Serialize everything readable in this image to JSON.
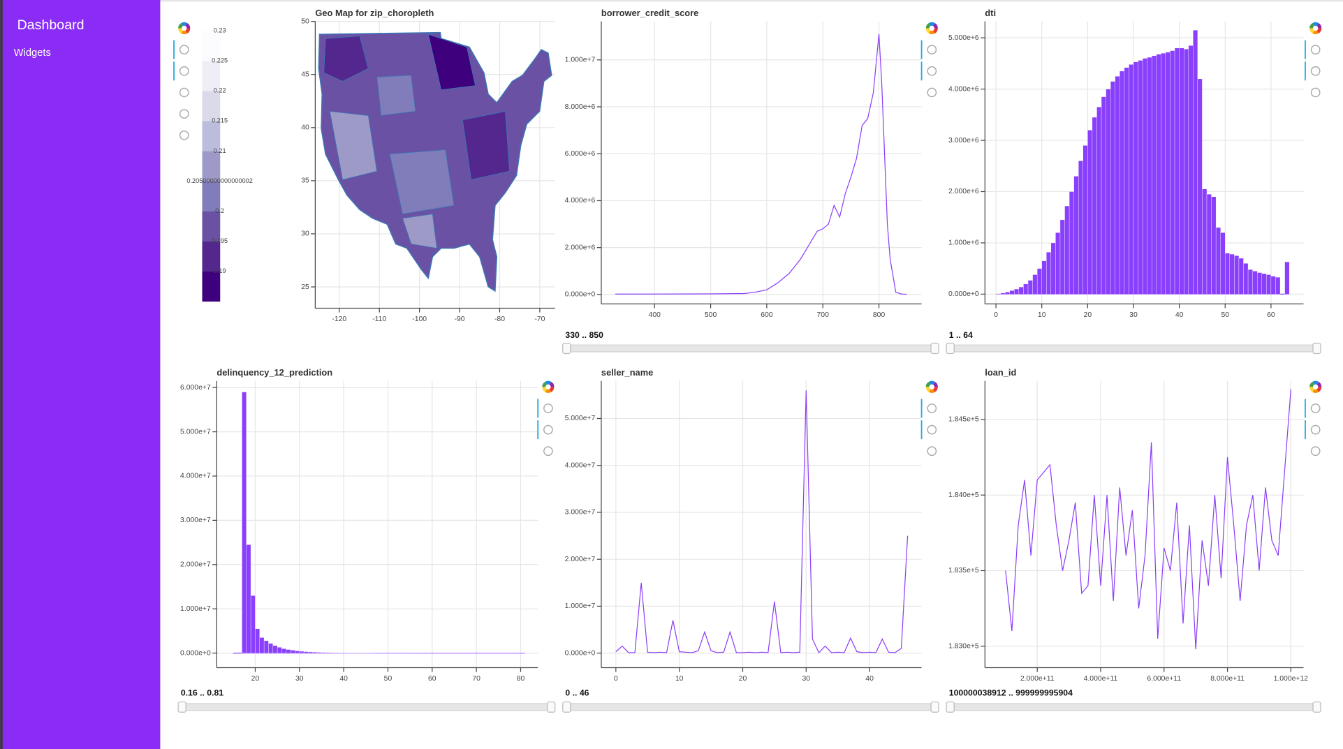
{
  "sidebar": {
    "title": "Dashboard",
    "items": [
      "Widgets"
    ]
  },
  "chart_data": [
    {
      "type": "geo_map",
      "title": "Geo Map for zip_choropleth",
      "xlim": [
        -126,
        -66.2
      ],
      "xticks": [
        -120,
        -110,
        -100,
        -90,
        -80,
        -70
      ],
      "ylim": [
        23,
        50
      ],
      "yticks": [
        25,
        30,
        35,
        40,
        45,
        50
      ],
      "grid": true,
      "colorbar": {
        "lim": [
          0.185,
          0.23
        ],
        "palette": [
          "#3f007d",
          "#54278f",
          "#6a51a3",
          "#807dba",
          "#9e9ac8",
          "#bcbddc",
          "#dadaeb",
          "#efedf5",
          "#fcfbfd"
        ],
        "ticks": [
          0.23,
          0.225,
          0.22,
          0.215,
          0.21,
          {
            "value": 0.205,
            "label": "0.20500000000000002"
          },
          0.2,
          0.195,
          0.19
        ]
      }
    },
    {
      "type": "line",
      "title": "borrower_credit_score",
      "color": "#8c3ff7",
      "range_label": "330 .. 850",
      "x": [
        330,
        400,
        500,
        560,
        580,
        600,
        620,
        640,
        660,
        670,
        680,
        690,
        700,
        710,
        720,
        730,
        740,
        750,
        760,
        770,
        780,
        790,
        800,
        805,
        810,
        815,
        820,
        830,
        840,
        850
      ],
      "values": [
        20000,
        20000,
        25000,
        40000,
        100000,
        200000,
        500000,
        900000,
        1500000,
        1900000,
        2300000,
        2700000,
        2800000,
        3000000,
        3800000,
        3300000,
        4300000,
        5000000,
        5800000,
        7200000,
        7500000,
        8600000,
        11100000,
        9000000,
        6000000,
        3000000,
        1500000,
        100000,
        20000,
        10000
      ],
      "xlim": [
        305,
        876
      ],
      "xticks": [
        400,
        500,
        600,
        700,
        800
      ],
      "ylim": [
        -400000,
        11640000
      ],
      "yticks": [
        {
          "value": 0,
          "label": "0.000e+0"
        },
        {
          "value": 2000000,
          "label": "2.000e+6"
        },
        {
          "value": 4000000,
          "label": "4.000e+6"
        },
        {
          "value": 6000000,
          "label": "6.000e+6"
        },
        {
          "value": 8000000,
          "label": "8.000e+6"
        },
        {
          "value": 10000000,
          "label": "1.000e+7"
        }
      ],
      "grid": true
    },
    {
      "type": "histogram",
      "title": "dti",
      "color": "#8a3ffc",
      "range_label": "1 .. 64",
      "bins": [
        0,
        1,
        2,
        3,
        4,
        5,
        6,
        7,
        8,
        9,
        10,
        11,
        12,
        13,
        14,
        15,
        16,
        17,
        18,
        19,
        20,
        21,
        22,
        23,
        24,
        25,
        26,
        27,
        28,
        29,
        30,
        31,
        32,
        33,
        34,
        35,
        36,
        37,
        38,
        39,
        40,
        41,
        42,
        43,
        44,
        45,
        46,
        47,
        48,
        49,
        50,
        51,
        52,
        53,
        54,
        55,
        56,
        57,
        58,
        59,
        60,
        61,
        62,
        63,
        64
      ],
      "values": [
        10000,
        20000,
        40000,
        70000,
        100000,
        140000,
        200000,
        270000,
        380000,
        500000,
        650000,
        820000,
        1000000,
        1200000,
        1450000,
        1720000,
        2000000,
        2300000,
        2600000,
        2900000,
        3200000,
        3450000,
        3650000,
        3850000,
        4000000,
        4150000,
        4250000,
        4350000,
        4420000,
        4480000,
        4530000,
        4560000,
        4600000,
        4620000,
        4650000,
        4680000,
        4700000,
        4720000,
        4750000,
        4800000,
        4800000,
        4780000,
        4850000,
        5150000,
        4200000,
        2050000,
        1950000,
        1900000,
        1300000,
        1200000,
        800000,
        780000,
        750000,
        700000,
        600000,
        480000,
        450000,
        420000,
        400000,
        380000,
        350000,
        330000,
        0,
        630000
      ],
      "xlim": [
        -2.4,
        67.1
      ],
      "xticks": [
        0,
        10,
        20,
        30,
        40,
        50,
        60
      ],
      "ylim": [
        -190000,
        5320000
      ],
      "yticks": [
        {
          "value": 0,
          "label": "0.000e+0"
        },
        {
          "value": 1000000,
          "label": "1.000e+6"
        },
        {
          "value": 2000000,
          "label": "2.000e+6"
        },
        {
          "value": 3000000,
          "label": "3.000e+6"
        },
        {
          "value": 4000000,
          "label": "4.000e+6"
        },
        {
          "value": 5000000,
          "label": "5.000e+6"
        }
      ],
      "grid": true
    },
    {
      "type": "histogram",
      "title": "delinquency_12_prediction",
      "color": "#8a3ffc",
      "range_label": "0.16 .. 0.81",
      "bins": [
        15,
        16,
        17,
        18,
        19,
        20,
        21,
        22,
        23,
        24,
        25,
        26,
        27,
        28,
        29,
        30,
        31,
        32,
        33,
        34,
        35,
        36,
        37,
        38,
        39,
        40,
        41,
        42,
        43,
        44,
        45,
        46,
        47,
        48,
        49,
        50,
        51,
        52,
        53,
        54,
        55,
        56,
        57,
        58,
        59,
        60,
        61,
        62,
        63,
        64,
        65,
        66,
        67,
        68,
        69,
        70,
        71,
        72,
        73,
        74,
        75,
        76,
        77,
        78,
        79,
        80,
        81
      ],
      "values": [
        0,
        0,
        59000000,
        24500000,
        13000000,
        5500000,
        3500000,
        2800000,
        2200000,
        1700000,
        1300000,
        1000000,
        800000,
        650000,
        500000,
        400000,
        320000,
        260000,
        210000,
        170000,
        140000,
        110000,
        95000,
        85000,
        75000,
        68000,
        60000,
        55000,
        50000,
        46000,
        42000,
        38000,
        35000,
        32000,
        30000,
        28000,
        26000,
        24000,
        22000,
        21000,
        20000,
        19000,
        18000,
        17000,
        16000,
        15000,
        14000,
        13500,
        13000,
        12500,
        12000,
        11500,
        11000,
        10500,
        10000,
        9500,
        9000,
        8500,
        8000,
        7500,
        7000,
        6500,
        6000,
        5500,
        5000,
        4500
      ],
      "xlim": [
        11.3,
        83.9
      ],
      "xticks": [
        20,
        30,
        40,
        50,
        60,
        70,
        80
      ],
      "ylim": [
        -3300000,
        61500000
      ],
      "yticks": [
        {
          "value": 0,
          "label": "0.000e+0"
        },
        {
          "value": 10000000,
          "label": "1.000e+7"
        },
        {
          "value": 20000000,
          "label": "2.000e+7"
        },
        {
          "value": 30000000,
          "label": "3.000e+7"
        },
        {
          "value": 40000000,
          "label": "4.000e+7"
        },
        {
          "value": 50000000,
          "label": "5.000e+7"
        },
        {
          "value": 60000000,
          "label": "6.000e+7"
        }
      ],
      "grid": true
    },
    {
      "type": "line",
      "title": "seller_name",
      "color": "#8c3ff7",
      "range_label": "0 .. 46",
      "x": [
        0,
        1,
        2,
        3,
        4,
        5,
        6,
        7,
        8,
        9,
        10,
        11,
        12,
        13,
        14,
        15,
        16,
        17,
        18,
        19,
        20,
        21,
        22,
        23,
        24,
        25,
        26,
        27,
        28,
        29,
        30,
        31,
        32,
        33,
        34,
        35,
        36,
        37,
        38,
        39,
        40,
        41,
        42,
        43,
        44,
        45,
        46
      ],
      "values": [
        300000,
        1500000,
        100000,
        100000,
        15000000,
        200000,
        100000,
        200000,
        100000,
        7000000,
        300000,
        200000,
        100000,
        500000,
        4500000,
        500000,
        100000,
        200000,
        4500000,
        100000,
        100000,
        200000,
        100000,
        200000,
        100000,
        11000000,
        100000,
        200000,
        100000,
        200000,
        56000000,
        3000000,
        100000,
        1500000,
        100000,
        200000,
        100000,
        3200000,
        300000,
        100000,
        200000,
        100000,
        3000000,
        200000,
        100000,
        1000000,
        25000000
      ],
      "xlim": [
        -2.3,
        48.2
      ],
      "xticks": [
        0,
        10,
        20,
        30,
        40
      ],
      "ylim": [
        -3100000,
        58000000
      ],
      "yticks": [
        {
          "value": 0,
          "label": "0.000e+0"
        },
        {
          "value": 10000000,
          "label": "1.000e+7"
        },
        {
          "value": 20000000,
          "label": "2.000e+7"
        },
        {
          "value": 30000000,
          "label": "3.000e+7"
        },
        {
          "value": 40000000,
          "label": "4.000e+7"
        },
        {
          "value": 50000000,
          "label": "5.000e+7"
        }
      ],
      "grid": true
    },
    {
      "type": "line",
      "title": "loan_id",
      "color": "#8c3ff7",
      "range_label": "100000038912 .. 999999995904",
      "x": [
        100000000000.0,
        120000000000.0,
        140000000000.0,
        160000000000.0,
        180000000000.0,
        200000000000.0,
        220000000000.0,
        240000000000.0,
        260000000000.0,
        280000000000.0,
        300000000000.0,
        320000000000.0,
        340000000000.0,
        360000000000.0,
        380000000000.0,
        400000000000.0,
        420000000000.0,
        440000000000.0,
        460000000000.0,
        480000000000.0,
        500000000000.0,
        520000000000.0,
        540000000000.0,
        560000000000.0,
        580000000000.0,
        600000000000.0,
        620000000000.0,
        640000000000.0,
        660000000000.0,
        680000000000.0,
        700000000000.0,
        720000000000.0,
        740000000000.0,
        760000000000.0,
        780000000000.0,
        800000000000.0,
        820000000000.0,
        840000000000.0,
        860000000000.0,
        880000000000.0,
        900000000000.0,
        920000000000.0,
        940000000000.0,
        960000000000.0,
        980000000000.0,
        1000000000000.0
      ],
      "values": [
        183500,
        183100,
        183800,
        184100,
        183600,
        184100,
        184150,
        184200,
        183800,
        183500,
        183700,
        183950,
        183350,
        183400,
        184000,
        183400,
        184000,
        183300,
        184050,
        183600,
        183900,
        183250,
        183600,
        184350,
        183050,
        183650,
        183500,
        183950,
        183150,
        183800,
        182980,
        183700,
        183400,
        184000,
        183450,
        184250,
        183800,
        183300,
        183800,
        184000,
        183500,
        184050,
        183700,
        183600,
        184150,
        184700
      ],
      "xlim": [
        35000000000,
        1040000000000
      ],
      "xticks": [
        {
          "value": 200000000000,
          "label": "2.000e+11"
        },
        {
          "value": 400000000000,
          "label": "4.000e+11"
        },
        {
          "value": 600000000000,
          "label": "6.000e+11"
        },
        {
          "value": 800000000000,
          "label": "8.000e+11"
        },
        {
          "value": 1000000000000,
          "label": "1.000e+12"
        }
      ],
      "ylim": [
        182858,
        184755
      ],
      "yticks": [
        {
          "value": 183000,
          "label": "1.830e+5"
        },
        {
          "value": 183500,
          "label": "1.835e+5"
        },
        {
          "value": 184000,
          "label": "1.840e+5"
        },
        {
          "value": 184500,
          "label": "1.845e+5"
        }
      ],
      "grid": true
    }
  ]
}
